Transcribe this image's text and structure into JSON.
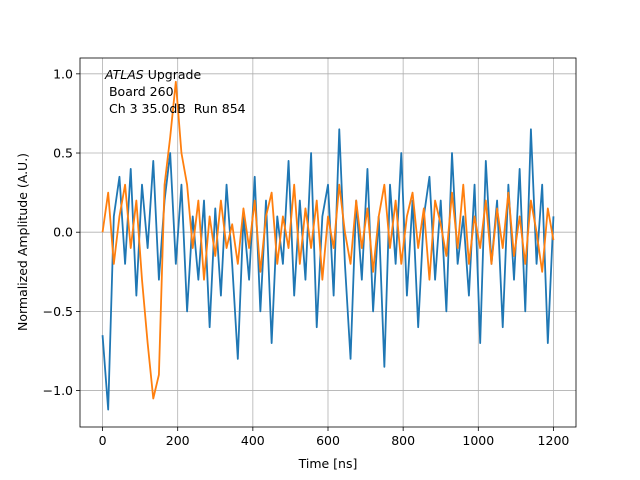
{
  "chart_data": {
    "type": "line",
    "xlabel": "Time [ns]",
    "ylabel": "Normalized Amplitude (A.U.)",
    "annotation": [
      {
        "italic": "ATLAS",
        "text": " Upgrade"
      },
      {
        "text": " Board 260"
      },
      {
        "text": " Ch 3 35.0dB  Run 854"
      }
    ],
    "xlim": [
      -60,
      1260
    ],
    "ylim": [
      -1.23,
      1.1
    ],
    "xticks": [
      0,
      200,
      400,
      600,
      800,
      1000,
      1200
    ],
    "yticks": [
      {
        "value": -1.0,
        "label": "−1.0"
      },
      {
        "value": -0.5,
        "label": "−0.5"
      },
      {
        "value": 0.0,
        "label": "0.0"
      },
      {
        "value": 0.5,
        "label": "0.5"
      },
      {
        "value": 1.0,
        "label": "1.0"
      }
    ],
    "grid": true,
    "x": [
      0,
      15,
      30,
      45,
      60,
      75,
      90,
      105,
      120,
      135,
      150,
      165,
      180,
      195,
      210,
      225,
      240,
      255,
      270,
      285,
      300,
      315,
      330,
      345,
      360,
      375,
      390,
      405,
      420,
      435,
      450,
      465,
      480,
      495,
      510,
      525,
      540,
      555,
      570,
      585,
      600,
      615,
      630,
      645,
      660,
      675,
      690,
      705,
      720,
      735,
      750,
      765,
      780,
      795,
      810,
      825,
      840,
      855,
      870,
      885,
      900,
      915,
      930,
      945,
      960,
      975,
      990,
      1005,
      1020,
      1035,
      1050,
      1065,
      1080,
      1095,
      1110,
      1125,
      1140,
      1155,
      1170,
      1185,
      1200
    ],
    "series": [
      {
        "color": "#1f77b4",
        "values": [
          -0.65,
          -1.12,
          0.1,
          0.35,
          -0.2,
          0.4,
          -0.4,
          0.3,
          -0.1,
          0.45,
          -0.3,
          0.2,
          0.5,
          -0.2,
          0.3,
          -0.5,
          0.1,
          -0.3,
          0.2,
          -0.6,
          0.15,
          -0.4,
          0.3,
          -0.2,
          -0.8,
          0.1,
          -0.3,
          0.35,
          -0.5,
          0.2,
          -0.7,
          0.1,
          -0.2,
          0.45,
          -0.4,
          0.2,
          -0.3,
          0.5,
          -0.6,
          0.1,
          0.3,
          -0.4,
          0.65,
          -0.2,
          -0.8,
          0.2,
          -0.3,
          0.4,
          -0.5,
          0.1,
          -0.85,
          0.3,
          -0.2,
          0.5,
          -0.4,
          0.2,
          -0.6,
          0.1,
          0.35,
          -0.3,
          0.2,
          -0.5,
          0.5,
          -0.2,
          0.1,
          -0.4,
          0.3,
          -0.7,
          0.45,
          -0.2,
          0.2,
          -0.6,
          0.3,
          -0.3,
          0.4,
          -0.5,
          0.65,
          -0.2,
          0.3,
          -0.7,
          0.1
        ]
      },
      {
        "color": "#ff7f0e",
        "values": [
          0.0,
          0.25,
          -0.2,
          0.1,
          0.3,
          -0.1,
          0.2,
          -0.3,
          -0.7,
          -1.05,
          -0.9,
          0.3,
          0.6,
          0.95,
          0.5,
          0.3,
          -0.1,
          0.2,
          -0.3,
          0.1,
          -0.15,
          0.2,
          -0.1,
          0.05,
          -0.2,
          0.15,
          -0.1,
          0.2,
          -0.25,
          0.1,
          0.25,
          -0.2,
          0.1,
          -0.1,
          0.3,
          -0.2,
          0.15,
          -0.1,
          0.2,
          -0.3,
          0.1,
          -0.1,
          0.3,
          0.0,
          -0.2,
          0.2,
          -0.1,
          0.15,
          -0.25,
          0.1,
          0.3,
          -0.1,
          0.2,
          -0.2,
          0.1,
          0.25,
          -0.1,
          0.15,
          -0.3,
          0.2,
          0.05,
          -0.15,
          0.25,
          -0.1,
          0.3,
          -0.2,
          0.1,
          -0.1,
          0.2,
          -0.2,
          0.15,
          -0.1,
          0.25,
          -0.15,
          0.1,
          -0.2,
          0.2,
          0.0,
          -0.25,
          0.15,
          -0.05
        ]
      }
    ]
  }
}
